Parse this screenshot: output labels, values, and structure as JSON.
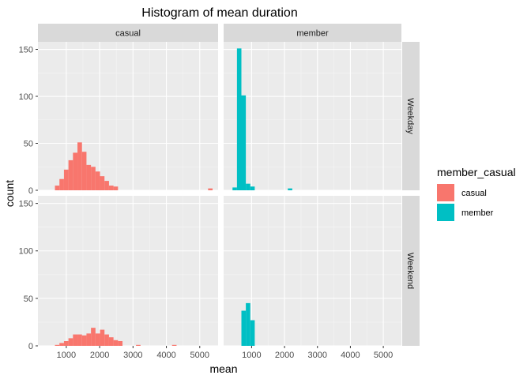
{
  "chart_data": {
    "type": "bar",
    "title": "Histogram of mean duration",
    "xlabel": "mean",
    "ylabel": "count",
    "xlim": [
      150,
      5550
    ],
    "ylim": [
      0,
      158
    ],
    "x_ticks": [
      1000,
      2000,
      3000,
      4000,
      5000
    ],
    "y_ticks": [
      0,
      50,
      100,
      150
    ],
    "bin_width": 135,
    "grid": true,
    "facet_cols": [
      "casual",
      "member"
    ],
    "facet_rows": [
      "Weekday",
      "Weekend"
    ],
    "legend": {
      "title": "member_casual",
      "position": "right",
      "entries": [
        {
          "label": "casual",
          "color": "#F8766D"
        },
        {
          "label": "member",
          "color": "#00BFC4"
        }
      ]
    },
    "panels": [
      {
        "col": "casual",
        "row": "Weekday",
        "color": "#F8766D",
        "bins": [
          [
            660,
            5
          ],
          [
            795,
            12
          ],
          [
            930,
            22
          ],
          [
            1065,
            32
          ],
          [
            1200,
            40
          ],
          [
            1335,
            51
          ],
          [
            1470,
            41
          ],
          [
            1605,
            27
          ],
          [
            1740,
            25
          ],
          [
            1875,
            20
          ],
          [
            2010,
            15
          ],
          [
            2145,
            10
          ],
          [
            2280,
            5
          ],
          [
            2415,
            4
          ],
          [
            5250,
            2
          ]
        ]
      },
      {
        "col": "member",
        "row": "Weekday",
        "color": "#00BFC4",
        "bins": [
          [
            420,
            3
          ],
          [
            555,
            151
          ],
          [
            690,
            101
          ],
          [
            825,
            7
          ],
          [
            960,
            4
          ],
          [
            2100,
            2
          ]
        ]
      },
      {
        "col": "casual",
        "row": "Weekend",
        "color": "#F8766D",
        "bins": [
          [
            660,
            1
          ],
          [
            795,
            3
          ],
          [
            930,
            5
          ],
          [
            1065,
            8
          ],
          [
            1200,
            12
          ],
          [
            1335,
            12
          ],
          [
            1470,
            11
          ],
          [
            1605,
            13
          ],
          [
            1740,
            19
          ],
          [
            1875,
            13
          ],
          [
            2010,
            17
          ],
          [
            2145,
            12
          ],
          [
            2280,
            9
          ],
          [
            2415,
            6
          ],
          [
            2550,
            5
          ],
          [
            3090,
            1
          ],
          [
            4170,
            1
          ]
        ]
      },
      {
        "col": "member",
        "row": "Weekend",
        "color": "#00BFC4",
        "bins": [
          [
            690,
            37
          ],
          [
            825,
            45
          ],
          [
            960,
            27
          ]
        ]
      }
    ]
  }
}
